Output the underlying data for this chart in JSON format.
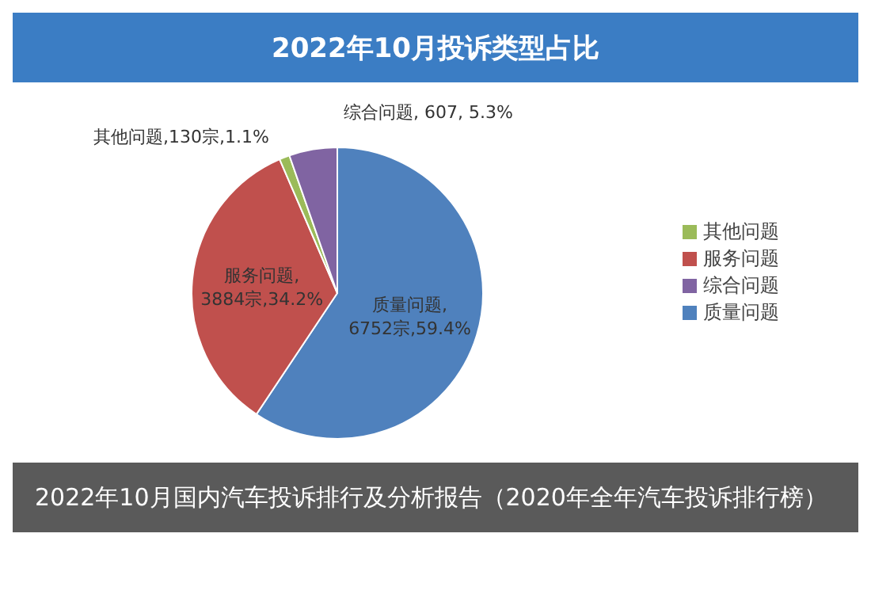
{
  "chart_data": {
    "type": "pie",
    "title": "2022年10月投诉类型占比",
    "categories": [
      "质量问题",
      "服务问题",
      "其他问题",
      "综合问题"
    ],
    "values": [
      6752,
      3884,
      130,
      607
    ],
    "colors": [
      "#4f81bd",
      "#c0504d",
      "#9bbb59",
      "#8064a2"
    ],
    "value_labels": [
      "质量问题,\n6752宗,59.4%",
      "服务问题,\n3884宗,34.2%",
      "其他问题,130宗,1.1%",
      "综合问题, 607, 5.3%"
    ],
    "legend": "right",
    "annotations": [
      "2022年10月国内汽车投诉排行及分析报告（2020年全年汽车投诉排行榜）"
    ]
  }
}
